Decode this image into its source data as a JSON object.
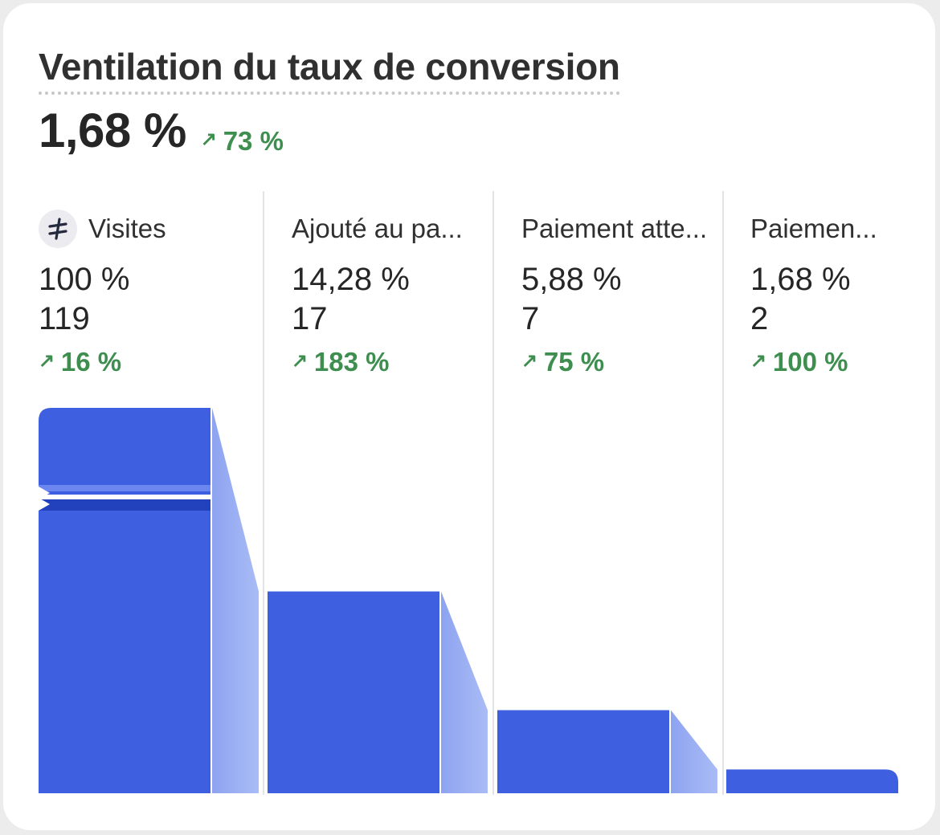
{
  "title": "Ventilation du taux de conversion",
  "headline": {
    "value": "1,68 %",
    "trend": "73 %",
    "trend_direction": "up"
  },
  "colors": {
    "bar": "#3d5fe0",
    "connector": "#a9bcf6",
    "trend_up": "#3e8e4f"
  },
  "steps": [
    {
      "label": "Visites",
      "icon": "channel-icon",
      "percent": "100 %",
      "count": "119",
      "trend": "16 %",
      "rate": 100
    },
    {
      "label": "Ajouté au pa...",
      "percent": "14,28 %",
      "count": "17",
      "trend": "183 %",
      "rate": 14.28
    },
    {
      "label": "Paiement atte...",
      "percent": "5,88 %",
      "count": "7",
      "trend": "75 %",
      "rate": 5.88
    },
    {
      "label": "Paiemen...",
      "percent": "1,68 %",
      "count": "2",
      "trend": "100 %",
      "rate": 1.68
    }
  ]
}
